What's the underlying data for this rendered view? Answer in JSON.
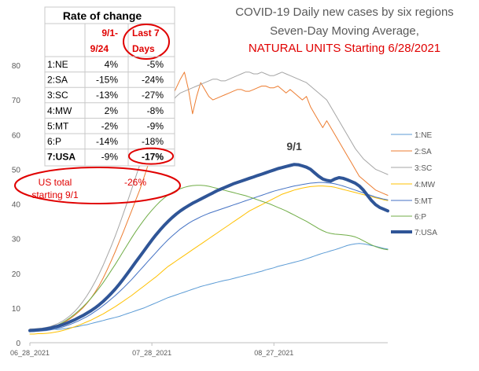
{
  "chart_data": {
    "type": "line",
    "title_lines": [
      "COVID-19 Daily new cases by six regions",
      "Seven-Day Moving Average,",
      "NATURAL UNITS Starting 6/28/2021"
    ],
    "title_colors": [
      "#595959",
      "#595959",
      "#e00000"
    ],
    "x_tick_labels": [
      "06_28_2021",
      "07_28_2021",
      "08_27_2021"
    ],
    "x_tick_days": [
      0,
      30,
      60
    ],
    "x_range_days": [
      0,
      88
    ],
    "ylim": [
      0,
      80
    ],
    "yticks": [
      0,
      10,
      20,
      30,
      40,
      50,
      60,
      70,
      80
    ],
    "grid": false,
    "legend_position": "right",
    "annotation": {
      "text": "9/1",
      "day": 65,
      "y": 51.5
    },
    "series": [
      {
        "name": "1:NE",
        "color": "#5b9bd5",
        "width": 1,
        "values": [
          3.7,
          3.8,
          3.9,
          4.0,
          4.0,
          3.9,
          3.9,
          3.8,
          4.0,
          4.1,
          4.3,
          4.5,
          4.7,
          5.0,
          5.2,
          5.5,
          5.8,
          6.1,
          6.4,
          6.7,
          7.0,
          7.3,
          7.6,
          8.0,
          8.4,
          8.8,
          9.2,
          9.6,
          10.0,
          10.5,
          11.0,
          11.5,
          12.0,
          12.5,
          13.0,
          13.4,
          13.8,
          14.2,
          14.6,
          15.0,
          15.4,
          15.8,
          16.2,
          16.5,
          16.8,
          17.1,
          17.4,
          17.7,
          18.0,
          18.2,
          18.5,
          18.8,
          19.1,
          19.4,
          19.7,
          20.0,
          20.3,
          20.6,
          21.0,
          21.3,
          21.6,
          22.0,
          22.3,
          22.6,
          22.9,
          23.2,
          23.5,
          23.8,
          24.2,
          24.6,
          25.0,
          25.4,
          25.8,
          26.1,
          26.5,
          26.8,
          27.2,
          27.6,
          28.0,
          28.3,
          28.5,
          28.6,
          28.5,
          28.3,
          28.0,
          27.8,
          27.5,
          27.2,
          27.0
        ]
      },
      {
        "name": "2:SA",
        "color": "#ed7d31",
        "width": 1,
        "values": [
          3.3,
          3.4,
          3.5,
          3.7,
          3.9,
          4.2,
          4.6,
          5.0,
          5.6,
          6.2,
          7.0,
          7.9,
          8.9,
          10.0,
          11.3,
          12.8,
          14.5,
          16.4,
          18.6,
          21.0,
          23.6,
          26.3,
          29.2,
          32.0,
          35.0,
          38.0,
          41.0,
          44.0,
          47.5,
          51.0,
          54.5,
          58.0,
          61.5,
          65.0,
          68.0,
          71.0,
          73.5,
          76.0,
          78.0,
          73.0,
          66.0,
          71.0,
          75.0,
          73.0,
          71.0,
          70.0,
          70.5,
          71.0,
          71.5,
          72.0,
          72.5,
          73.0,
          73.0,
          72.5,
          72.5,
          73.0,
          73.5,
          74.0,
          74.0,
          73.5,
          73.5,
          74.0,
          73.0,
          72.0,
          73.0,
          72.0,
          71.0,
          70.0,
          71.0,
          68.0,
          66.0,
          64.0,
          62.0,
          64.0,
          62.0,
          60.0,
          58.0,
          56.0,
          54.0,
          52.0,
          50.0,
          48.0,
          47.0,
          46.0,
          45.0,
          44.0,
          43.5,
          43.0,
          42.5
        ]
      },
      {
        "name": "3:SC",
        "color": "#a5a5a5",
        "width": 1,
        "values": [
          4.0,
          4.0,
          4.1,
          4.2,
          4.4,
          4.7,
          5.1,
          5.6,
          6.2,
          7.0,
          7.9,
          9.0,
          10.3,
          11.8,
          13.5,
          15.4,
          17.5,
          19.8,
          22.3,
          25.0,
          27.8,
          30.8,
          34.0,
          37.3,
          40.7,
          44.2,
          47.7,
          51.2,
          54.5,
          57.5,
          60.0,
          62.5,
          64.5,
          66.5,
          68.0,
          69.5,
          71.0,
          72.0,
          72.5,
          73.0,
          73.5,
          74.0,
          74.5,
          75.0,
          75.5,
          76.0,
          76.0,
          75.5,
          75.5,
          76.0,
          76.5,
          77.0,
          77.5,
          78.0,
          78.0,
          77.5,
          77.5,
          78.0,
          77.5,
          77.0,
          77.0,
          77.5,
          78.0,
          77.5,
          77.0,
          76.5,
          76.0,
          75.5,
          75.0,
          74.0,
          73.0,
          72.0,
          71.0,
          70.0,
          68.0,
          66.0,
          64.0,
          62.0,
          60.0,
          58.0,
          56.0,
          54.5,
          53.0,
          52.0,
          51.0,
          50.0,
          49.5,
          49.0,
          48.5
        ]
      },
      {
        "name": "4:MW",
        "color": "#ffc000",
        "width": 1,
        "values": [
          2.5,
          2.5,
          2.6,
          2.6,
          2.7,
          2.8,
          3.0,
          3.2,
          3.5,
          3.8,
          4.2,
          4.6,
          5.0,
          5.5,
          6.0,
          6.5,
          7.1,
          7.7,
          8.3,
          9.0,
          9.7,
          10.4,
          11.2,
          12.0,
          12.8,
          13.6,
          14.5,
          15.4,
          16.3,
          17.2,
          18.1,
          19.0,
          20.0,
          21.0,
          22.0,
          22.8,
          23.6,
          24.4,
          25.2,
          26.0,
          26.8,
          27.6,
          28.4,
          29.2,
          30.0,
          30.8,
          31.6,
          32.4,
          33.2,
          34.0,
          34.8,
          35.6,
          36.4,
          37.2,
          38.0,
          38.6,
          39.2,
          39.8,
          40.4,
          41.0,
          41.6,
          42.2,
          42.8,
          43.2,
          43.6,
          44.0,
          44.3,
          44.6,
          44.8,
          45.0,
          45.1,
          45.2,
          45.2,
          45.1,
          45.0,
          44.8,
          44.5,
          44.2,
          43.9,
          43.6,
          43.3,
          43.0,
          42.7,
          42.4,
          42.1,
          41.8,
          41.5,
          41.2,
          41.0
        ]
      },
      {
        "name": "5:MT",
        "color": "#4472c4",
        "width": 1,
        "values": [
          3.2,
          3.2,
          3.3,
          3.4,
          3.5,
          3.7,
          3.9,
          4.2,
          4.5,
          4.9,
          5.3,
          5.8,
          6.3,
          6.9,
          7.5,
          8.2,
          9.0,
          9.8,
          10.7,
          11.6,
          12.6,
          13.6,
          14.7,
          15.8,
          17.0,
          18.2,
          19.5,
          20.8,
          22.1,
          23.4,
          24.7,
          26.0,
          27.3,
          28.5,
          29.7,
          30.8,
          31.8,
          32.8,
          33.6,
          34.4,
          35.1,
          35.7,
          36.3,
          36.8,
          37.3,
          37.7,
          38.1,
          38.5,
          38.9,
          39.3,
          39.7,
          40.1,
          40.5,
          40.9,
          41.3,
          41.7,
          42.1,
          42.5,
          42.9,
          43.3,
          43.7,
          44.0,
          44.3,
          44.6,
          44.9,
          45.2,
          45.4,
          45.6,
          45.8,
          46.0,
          46.1,
          46.2,
          46.2,
          46.1,
          46.0,
          45.8,
          45.5,
          45.2,
          44.8,
          44.4,
          44.0,
          43.6,
          43.2,
          42.8,
          42.4,
          42.0,
          41.7,
          41.4,
          41.2
        ]
      },
      {
        "name": "6:P",
        "color": "#70ad47",
        "width": 1,
        "values": [
          3.5,
          3.6,
          3.7,
          3.8,
          4.0,
          4.3,
          4.7,
          5.2,
          5.8,
          6.5,
          7.3,
          8.2,
          9.2,
          10.3,
          11.5,
          12.8,
          14.2,
          15.7,
          17.3,
          19.0,
          20.8,
          22.6,
          24.5,
          26.4,
          28.3,
          30.2,
          32.0,
          33.7,
          35.3,
          36.8,
          38.2,
          39.5,
          40.7,
          41.7,
          42.6,
          43.3,
          43.9,
          44.4,
          44.8,
          45.1,
          45.3,
          45.4,
          45.4,
          45.3,
          45.1,
          44.8,
          44.5,
          44.2,
          43.9,
          43.6,
          43.3,
          43.0,
          42.7,
          42.4,
          42.0,
          41.6,
          41.2,
          40.8,
          40.4,
          40.0,
          39.5,
          39.0,
          38.5,
          38.0,
          37.4,
          36.8,
          36.2,
          35.6,
          35.0,
          34.3,
          33.6,
          32.9,
          32.3,
          31.8,
          31.5,
          31.3,
          31.2,
          31.1,
          31.0,
          30.8,
          30.5,
          30.0,
          29.4,
          28.8,
          28.2,
          27.7,
          27.3,
          27.0,
          26.8
        ]
      },
      {
        "name": "7:USA",
        "color": "#2f5597",
        "width": 4,
        "values": [
          3.5,
          3.6,
          3.7,
          3.8,
          4.0,
          4.2,
          4.5,
          4.8,
          5.2,
          5.6,
          6.1,
          6.6,
          7.2,
          7.8,
          8.5,
          9.2,
          10.0,
          10.9,
          11.9,
          13.0,
          14.2,
          15.5,
          16.9,
          18.4,
          20.0,
          21.6,
          23.2,
          24.8,
          26.4,
          28.0,
          29.6,
          31.1,
          32.5,
          33.8,
          35.0,
          36.1,
          37.1,
          38.0,
          38.8,
          39.5,
          40.2,
          40.8,
          41.4,
          42.0,
          42.6,
          43.2,
          43.8,
          44.3,
          44.8,
          45.3,
          45.8,
          46.2,
          46.6,
          47.0,
          47.4,
          47.8,
          48.2,
          48.6,
          49.0,
          49.4,
          49.8,
          50.2,
          50.5,
          50.8,
          51.1,
          51.4,
          51.3,
          51.0,
          50.6,
          50.0,
          49.0,
          48.0,
          47.2,
          46.8,
          46.6,
          47.2,
          47.6,
          47.4,
          47.0,
          46.5,
          46.0,
          45.2,
          44.0,
          42.5,
          41.0,
          39.8,
          39.0,
          38.5,
          38.0
        ]
      }
    ],
    "table": {
      "title": "Rate of change",
      "headers": [
        "",
        "9/1-9/24",
        "Last 7 Days"
      ],
      "rows": [
        [
          "1:NE",
          "4%",
          "-5%"
        ],
        [
          "2:SA",
          "-15%",
          "-24%"
        ],
        [
          "3:SC",
          "-13%",
          "-27%"
        ],
        [
          "4:MW",
          "2%",
          "-8%"
        ],
        [
          "5:MT",
          "-2%",
          "-9%"
        ],
        [
          "6:P",
          "-14%",
          "-18%"
        ],
        [
          "7:USA",
          "-9%",
          "-17%"
        ]
      ],
      "footer": [
        "US total starting 9/1",
        "-26%"
      ]
    },
    "accent_red": "#e00000"
  }
}
